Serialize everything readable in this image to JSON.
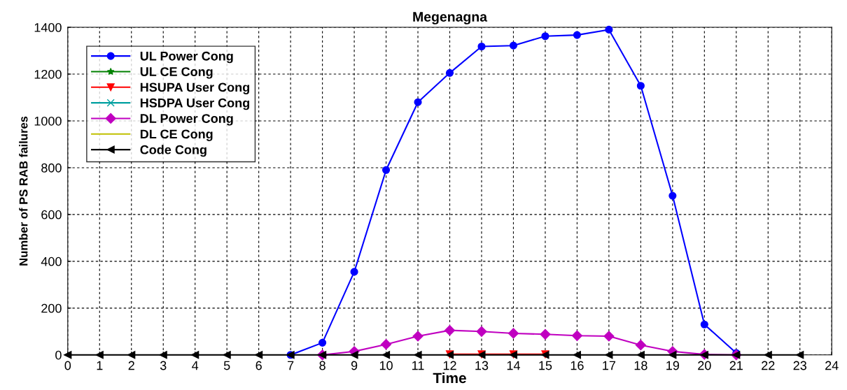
{
  "chart_data": {
    "type": "line",
    "title": "Megenagna",
    "xlabel": "Time",
    "ylabel": "Number of PS RAB failures",
    "x": [
      0,
      1,
      2,
      3,
      4,
      5,
      6,
      7,
      8,
      9,
      10,
      11,
      12,
      13,
      14,
      15,
      16,
      17,
      18,
      19,
      20,
      21,
      22,
      23
    ],
    "xlim": [
      0,
      24
    ],
    "xticks": [
      0,
      1,
      2,
      3,
      4,
      5,
      6,
      7,
      8,
      9,
      10,
      11,
      12,
      13,
      14,
      15,
      16,
      17,
      18,
      19,
      20,
      21,
      22,
      23,
      24
    ],
    "ylim": [
      0,
      1400
    ],
    "yticks": [
      0,
      200,
      400,
      600,
      800,
      1000,
      1200,
      1400
    ],
    "grid": true,
    "legend": "top left",
    "line_style": "solid",
    "series": [
      {
        "name": "UL Power Cong",
        "color": "#0000ff",
        "marker": "circle",
        "values": [
          null,
          null,
          null,
          null,
          null,
          null,
          null,
          0,
          52,
          355,
          790,
          1080,
          1205,
          1318,
          1322,
          1362,
          1367,
          1390,
          1150,
          680,
          130,
          8,
          null,
          null
        ]
      },
      {
        "name": "UL CE Cong",
        "color": "#008000",
        "marker": "star",
        "values": [
          null,
          null,
          null,
          null,
          null,
          null,
          null,
          null,
          null,
          null,
          null,
          null,
          null,
          null,
          null,
          null,
          null,
          null,
          null,
          null,
          null,
          null,
          null,
          null
        ]
      },
      {
        "name": "HSUPA User Cong",
        "color": "#ff0000",
        "marker": "triangle",
        "values": [
          null,
          null,
          null,
          null,
          null,
          null,
          null,
          null,
          null,
          null,
          null,
          null,
          3,
          3,
          3,
          3,
          null,
          null,
          null,
          null,
          null,
          null,
          null,
          null
        ]
      },
      {
        "name": "HSDPA User Cong",
        "color": "#00a0a0",
        "marker": "cross",
        "values": [
          null,
          null,
          null,
          null,
          null,
          null,
          null,
          null,
          null,
          null,
          null,
          null,
          null,
          null,
          null,
          null,
          null,
          null,
          null,
          null,
          null,
          null,
          null,
          null
        ]
      },
      {
        "name": "DL Power Cong",
        "color": "#c000c0",
        "marker": "diamond",
        "values": [
          null,
          null,
          null,
          null,
          null,
          null,
          null,
          null,
          0,
          15,
          45,
          80,
          105,
          100,
          92,
          88,
          82,
          80,
          42,
          15,
          2,
          0,
          null,
          null
        ]
      },
      {
        "name": "DL CE Cong",
        "color": "#c0c000",
        "marker": "none",
        "values": [
          null,
          null,
          null,
          null,
          null,
          null,
          null,
          null,
          null,
          null,
          null,
          null,
          null,
          null,
          null,
          null,
          null,
          null,
          null,
          null,
          null,
          null,
          null,
          null
        ]
      },
      {
        "name": "Code Cong",
        "color": "#000000",
        "marker": "triangle_left",
        "values": [
          0,
          0,
          0,
          0,
          0,
          0,
          0,
          0,
          0,
          0,
          0,
          0,
          0,
          0,
          0,
          0,
          0,
          0,
          0,
          0,
          0,
          0,
          0,
          0
        ]
      }
    ]
  }
}
